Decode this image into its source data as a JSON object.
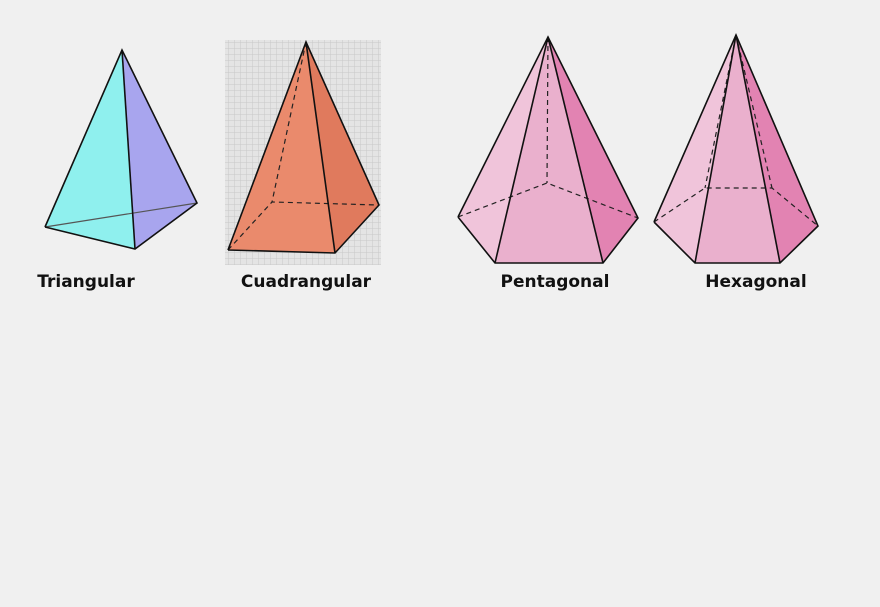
{
  "labels": [
    "Triangular",
    "Cuadrangular",
    "Pentagonal",
    "Hexagonal"
  ]
}
